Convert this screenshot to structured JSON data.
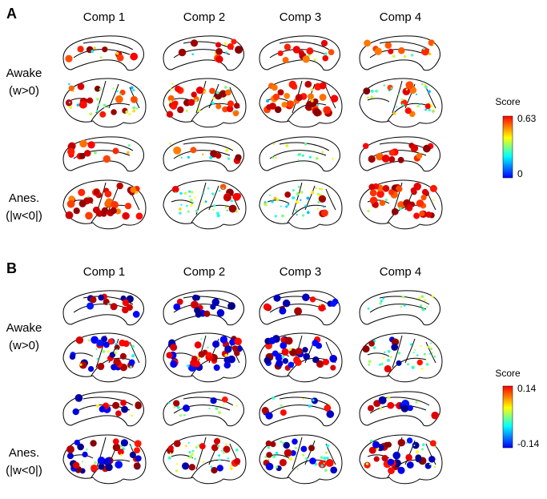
{
  "panels": [
    {
      "label": "A",
      "columns": [
        "Comp 1",
        "Comp 2",
        "Comp 3",
        "Comp 4"
      ],
      "rows": [
        {
          "name": "Awake",
          "condition": "(w>0)"
        },
        {
          "name": "Anes.",
          "condition": "(|w<0|)"
        }
      ],
      "colorbar": {
        "title": "Score",
        "max": "0.63",
        "min": "0"
      }
    },
    {
      "label": "B",
      "columns": [
        "Comp 1",
        "Comp 2",
        "Comp 3",
        "Comp 4"
      ],
      "rows": [
        {
          "name": "Awake",
          "condition": "(w>0)"
        },
        {
          "name": "Anes.",
          "condition": "(|w<0|)"
        }
      ],
      "colorbar": {
        "title": "Score",
        "max": "0.14",
        "min": "-0.14"
      }
    }
  ]
}
